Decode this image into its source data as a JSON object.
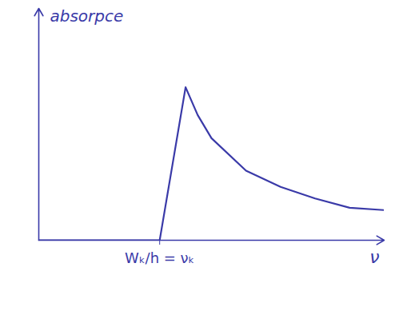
{
  "chart_data": {
    "type": "line",
    "y_label": "absorpce",
    "x_label": "ν",
    "x": [
      0,
      3.5,
      4.25,
      4.6,
      5,
      6,
      7,
      8,
      9,
      10
    ],
    "values": [
      0,
      0,
      6.6,
      5.4,
      4.4,
      3.0,
      2.3,
      1.8,
      1.4,
      1.3
    ],
    "color": "#3a3aa8",
    "xlim": [
      0,
      10
    ],
    "ylim": [
      0,
      10
    ],
    "xticks": [
      {
        "value": 3.5,
        "label": "Wₖ/h = νₖ"
      }
    ],
    "yticks": [],
    "tick_labels": "x",
    "grid": false
  }
}
